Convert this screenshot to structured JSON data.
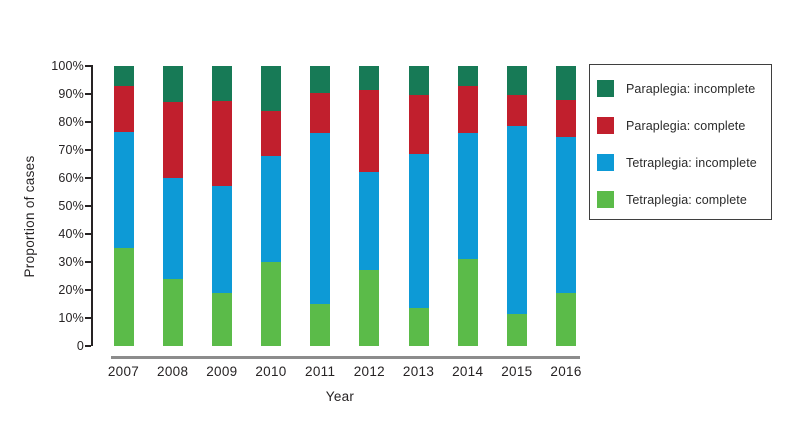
{
  "chart_data": {
    "type": "bar",
    "stacked": true,
    "orientation": "vertical",
    "title": "",
    "xlabel": "Year",
    "ylabel": "Proportion of cases",
    "categories": [
      "2007",
      "2008",
      "2009",
      "2010",
      "2011",
      "2012",
      "2013",
      "2014",
      "2015",
      "2016"
    ],
    "series": [
      {
        "name": "Tetraplegia: complete",
        "color": "#5bbb49",
        "values": [
          35,
          24,
          19,
          30,
          15,
          27,
          13.5,
          31,
          11.5,
          19
        ]
      },
      {
        "name": "Tetraplegia: incomplete",
        "color": "#0d9ad6",
        "values": [
          41.5,
          36,
          38,
          38,
          61,
          35,
          55,
          45,
          67,
          55.5
        ]
      },
      {
        "name": "Paraplegia: complete",
        "color": "#c11f2d",
        "values": [
          16.5,
          27,
          30.5,
          16,
          14.5,
          29.5,
          21,
          17,
          11,
          13.5
        ]
      },
      {
        "name": "Paraplegia: incomplete",
        "color": "#177a56",
        "values": [
          7,
          13,
          12.5,
          16,
          9.5,
          8.5,
          10.5,
          7,
          10.5,
          12
        ]
      }
    ],
    "stack_order_note": "series listed bottom-to-top of each bar",
    "legend": {
      "position": "right",
      "order_top_to_bottom": [
        "Paraplegia: incomplete",
        "Paraplegia: complete",
        "Tetraplegia: incomplete",
        "Tetraplegia: complete"
      ]
    },
    "y_ticks": [
      "100%",
      "90%",
      "80%",
      "70%",
      "60%",
      "50%",
      "40%",
      "30%",
      "20%",
      "10%",
      "0"
    ],
    "ylim": [
      0,
      100
    ],
    "grid": false,
    "axis_color": "#262324",
    "x_baseline_color": "#8c8c8c",
    "background": "#ffffff"
  }
}
